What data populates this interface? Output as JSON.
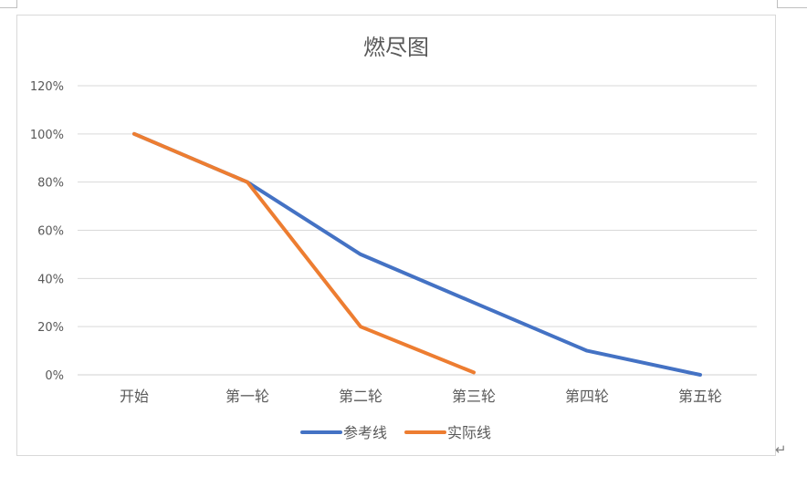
{
  "chart_data": {
    "type": "line",
    "title": "燃尽图",
    "categories": [
      "开始",
      "第一轮",
      "第二轮",
      "第三轮",
      "第四轮",
      "第五轮"
    ],
    "y_ticks": [
      "0%",
      "20%",
      "40%",
      "60%",
      "80%",
      "100%",
      "120%"
    ],
    "ylim": [
      0,
      120
    ],
    "grid": true,
    "legend_position": "bottom",
    "series": [
      {
        "name": "参考线",
        "color": "#4472C4",
        "values": [
          100,
          80,
          50,
          30,
          10,
          0
        ]
      },
      {
        "name": "实际线",
        "color": "#ED7D31",
        "values": [
          100,
          80,
          20,
          1,
          null,
          null
        ]
      }
    ]
  },
  "document": {
    "paragraph_mark": "↵"
  }
}
